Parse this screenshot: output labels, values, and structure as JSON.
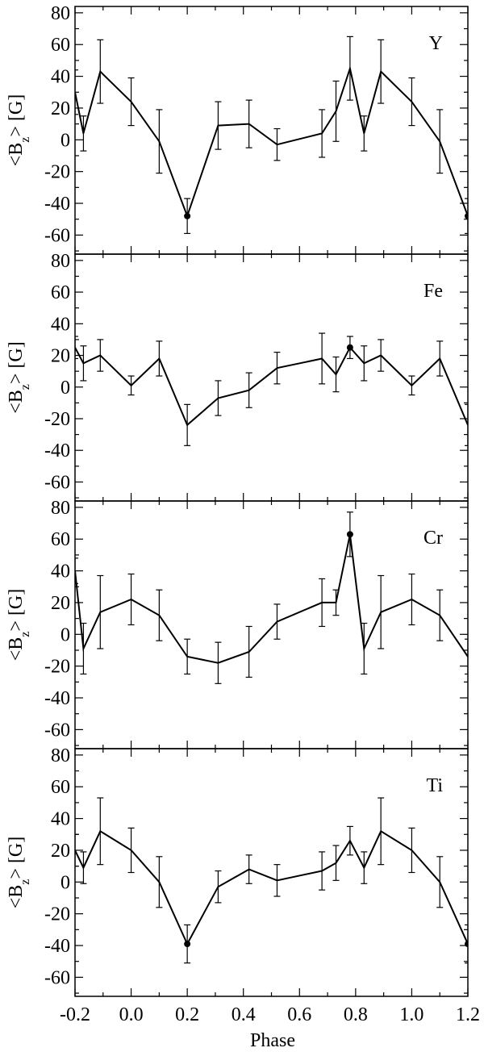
{
  "chart_data": {
    "type": "line",
    "xlabel": "Phase",
    "xlim": [
      -0.2,
      1.2
    ],
    "x_tick_labels": [
      "-0.2",
      "0.0",
      "0.2",
      "0.4",
      "0.6",
      "0.8",
      "1.0",
      "1.2"
    ],
    "ylim": [
      -72,
      84
    ],
    "y_tick_labels": [
      "-60",
      "-40",
      "-20",
      "0",
      "20",
      "40",
      "60",
      "80"
    ],
    "ylabel": "<Bz> [G]",
    "panels": [
      {
        "label": "Y",
        "x": [
          -0.2,
          -0.17,
          -0.11,
          0.0,
          0.1,
          0.2,
          0.31,
          0.42,
          0.52,
          0.68,
          0.73,
          0.78,
          0.83,
          0.89,
          1.0,
          1.1,
          1.2
        ],
        "y": [
          30,
          4,
          43,
          24,
          -1,
          -48,
          9,
          10,
          -3,
          4,
          18,
          45,
          4,
          43,
          24,
          -1,
          -48
        ],
        "err": [
          14,
          11,
          20,
          15,
          20,
          11,
          15,
          15,
          10,
          15,
          19,
          20,
          11,
          20,
          15,
          20,
          11
        ],
        "marked_x": [
          0.2,
          1.2
        ]
      },
      {
        "label": "Fe",
        "x": [
          -0.2,
          -0.17,
          -0.11,
          0.0,
          0.1,
          0.2,
          0.31,
          0.42,
          0.52,
          0.68,
          0.73,
          0.78,
          0.83,
          0.89,
          1.0,
          1.1,
          1.2
        ],
        "y": [
          25,
          15,
          20,
          1,
          18,
          -24,
          -7,
          -2,
          12,
          18,
          8,
          25,
          15,
          20,
          1,
          18,
          -24
        ],
        "err": [
          7,
          11,
          10,
          6,
          11,
          13,
          11,
          11,
          10,
          16,
          11,
          7,
          11,
          10,
          6,
          11,
          13
        ],
        "marked_x": [
          0.78
        ]
      },
      {
        "label": "Cr",
        "x": [
          -0.2,
          -0.17,
          -0.11,
          0.0,
          0.1,
          0.2,
          0.31,
          0.42,
          0.52,
          0.68,
          0.73,
          0.78,
          0.83,
          0.89,
          1.0,
          1.1,
          1.2
        ],
        "y": [
          40,
          -9,
          14,
          22,
          12,
          -14,
          -18,
          -11,
          8,
          20,
          20,
          63,
          -9,
          14,
          22,
          12,
          -14
        ],
        "err": [
          8,
          16,
          23,
          16,
          16,
          11,
          13,
          16,
          11,
          15,
          8,
          14,
          16,
          23,
          16,
          16,
          11
        ],
        "marked_x": [
          0.78
        ]
      },
      {
        "label": "Ti",
        "x": [
          -0.2,
          -0.17,
          -0.11,
          0.0,
          0.1,
          0.2,
          0.31,
          0.42,
          0.52,
          0.68,
          0.73,
          0.78,
          0.83,
          0.89,
          1.0,
          1.1,
          1.2
        ],
        "y": [
          20,
          9,
          32,
          20,
          0,
          -39,
          -3,
          8,
          1,
          7,
          12,
          26,
          9,
          32,
          20,
          0,
          -39
        ],
        "err": [
          10,
          10,
          21,
          14,
          16,
          12,
          10,
          9,
          10,
          12,
          11,
          9,
          10,
          21,
          14,
          16,
          12
        ],
        "marked_x": [
          0.2,
          1.2
        ]
      }
    ]
  }
}
